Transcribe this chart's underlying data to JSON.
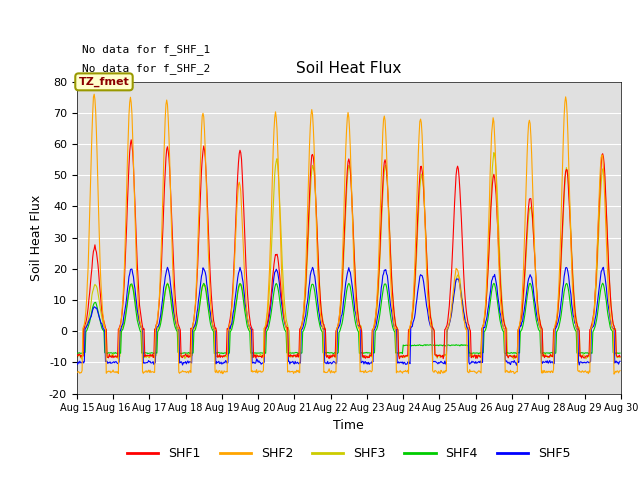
{
  "title": "Soil Heat Flux",
  "ylabel": "Soil Heat Flux",
  "xlabel": "Time",
  "note1": "No data for f_SHF_1",
  "note2": "No data for f_SHF_2",
  "tz_label": "TZ_fmet",
  "ylim": [
    -20,
    80
  ],
  "yticks": [
    -20,
    -10,
    0,
    10,
    20,
    30,
    40,
    50,
    60,
    70,
    80
  ],
  "xtick_labels": [
    "Aug 15",
    "Aug 16",
    "Aug 17",
    "Aug 18",
    "Aug 19",
    "Aug 20",
    "Aug 21",
    "Aug 22",
    "Aug 23",
    "Aug 24",
    "Aug 25",
    "Aug 26",
    "Aug 27",
    "Aug 28",
    "Aug 29",
    "Aug 30"
  ],
  "line_colors": {
    "SHF1": "#ff0000",
    "SHF2": "#ffa500",
    "SHF3": "#cccc00",
    "SHF4": "#00cc00",
    "SHF5": "#0000ff"
  },
  "bg_color": "#e0e0e0",
  "shf1_peaks": [
    27,
    61,
    59,
    59,
    58,
    25,
    57,
    55,
    55,
    53,
    53,
    50,
    43,
    52,
    57
  ],
  "shf2_peaks": [
    76,
    75,
    74,
    70,
    48,
    70,
    71,
    70,
    69,
    68,
    20,
    68,
    68,
    75,
    57
  ],
  "shf3_peaks": [
    15,
    15,
    15,
    15,
    15,
    55,
    53,
    53,
    53,
    50,
    18,
    57,
    40,
    52,
    52
  ],
  "shf4_peaks": [
    10,
    16,
    16,
    16,
    16,
    16,
    16,
    16,
    16,
    16,
    16,
    16,
    16,
    16,
    16
  ],
  "shf5_peaks": [
    8,
    20,
    20,
    20,
    20,
    20,
    20,
    20,
    20,
    18,
    17,
    18,
    18,
    20,
    20
  ],
  "shf1_night": -8,
  "shf2_night": -13,
  "shf3_night": -8,
  "shf4_night": -7,
  "shf5_night": -10
}
